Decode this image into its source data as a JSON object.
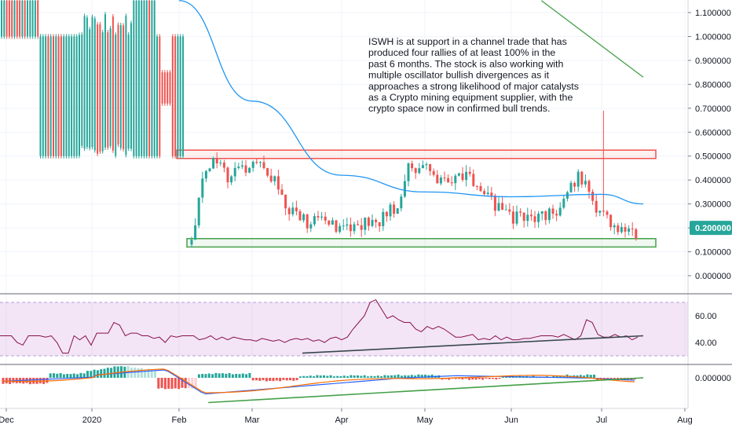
{
  "chart_data": [
    {
      "type": "candlestick",
      "panel": "price",
      "annotation": "ISWH is at support in a channel trade that has produced four rallies of at least 100% in the past 6 months. The stock is also working with multiple oscillator bullish divergences as it approaches a strong likelihood of major catalysts as a Crypto mining equipment supplier, with the crypto space now in confirmed bull trends.",
      "ylim": [
        -0.05,
        1.15
      ],
      "y_ticks": [
        "1.100000",
        "1.000000",
        "0.900000",
        "0.800000",
        "0.700000",
        "0.600000",
        "0.500000",
        "0.400000",
        "0.300000",
        "0.200000",
        "0.100000",
        "0.000000"
      ],
      "y_tick_values": [
        1.1,
        1.0,
        0.9,
        0.8,
        0.7,
        0.6,
        0.5,
        0.4,
        0.3,
        0.2,
        0.1,
        0.0
      ],
      "last_price_label": "0.200000",
      "last_price": 0.2,
      "resistance_zone": [
        0.49,
        0.525
      ],
      "support_zone": [
        0.12,
        0.155
      ],
      "moving_averages": [
        {
          "color": "#2196f3",
          "points": [
            [
              "Feb",
              1.15
            ],
            [
              "Mar",
              0.73
            ],
            [
              "Apr",
              0.42
            ],
            [
              "May",
              0.35
            ],
            [
              "Jun",
              0.33
            ],
            [
              "Jul",
              0.34
            ],
            [
              "Jul 15",
              0.3
            ]
          ]
        },
        {
          "color": "#43a047",
          "points": [
            [
              "Jun 10",
              1.15
            ],
            [
              "Jul 15",
              0.83
            ]
          ]
        }
      ],
      "candle_colors": {
        "up": "#26a69a",
        "down": "#ef5350"
      }
    },
    {
      "type": "line",
      "panel": "RSI",
      "ylim": [
        20,
        80
      ],
      "y_ticks": [
        "60.00",
        "40.00"
      ],
      "y_tick_values": [
        60,
        40
      ],
      "band": [
        30,
        70
      ],
      "series": [
        {
          "color": "#880e4f",
          "values": [
            45,
            45,
            45,
            40,
            38,
            45,
            45,
            45,
            44,
            45,
            40,
            32,
            32,
            45,
            42,
            45,
            38,
            47,
            47,
            47,
            55,
            53,
            45,
            47,
            47,
            45,
            45,
            43,
            44,
            40,
            45,
            44,
            45,
            45,
            45,
            42,
            43,
            45,
            42,
            44,
            42,
            44,
            43,
            42,
            42,
            41,
            43,
            42,
            41,
            42,
            40,
            42,
            43,
            42,
            43,
            41,
            42,
            40,
            43,
            44,
            42,
            44,
            50,
            55,
            60,
            70,
            72,
            65,
            58,
            60,
            57,
            55,
            55,
            50,
            48,
            52,
            50,
            52,
            50,
            47,
            44,
            44,
            45,
            46,
            42,
            43,
            42,
            45,
            42,
            44,
            42,
            42,
            43,
            43,
            44,
            45,
            45,
            45,
            44,
            46,
            44,
            42,
            45,
            57,
            55,
            46,
            44,
            44,
            46,
            44,
            45,
            42,
            44
          ]
        }
      ],
      "divergence_line": {
        "color": "#37474f",
        "from": [
          "Apr",
          32
        ],
        "to": [
          "Jul 15",
          45
        ]
      }
    },
    {
      "type": "bar",
      "panel": "MACD",
      "ylim": [
        -0.1,
        0.05
      ],
      "y_ticks": [
        "0.000000"
      ],
      "y_tick_values": [
        0.0
      ],
      "x_ticks": [
        "Dec",
        "2020",
        "Feb",
        "Mar",
        "Apr",
        "May",
        "Jun",
        "Jul",
        "Aug"
      ],
      "histogram_colors": {
        "up_strong": "#26a69a",
        "up_weak": "#b2dfdb",
        "down_strong": "#ef5350",
        "down_weak": "#ffcdd2"
      },
      "series": [
        {
          "name": "",
          "color": "#2962ff"
        },
        {
          "name": "",
          "color": "#ff6d00"
        }
      ],
      "divergence_line": {
        "color": "#43a047",
        "from": [
          "Feb 12",
          -0.035
        ],
        "to": [
          "Jul 15",
          0.0
        ]
      }
    }
  ]
}
